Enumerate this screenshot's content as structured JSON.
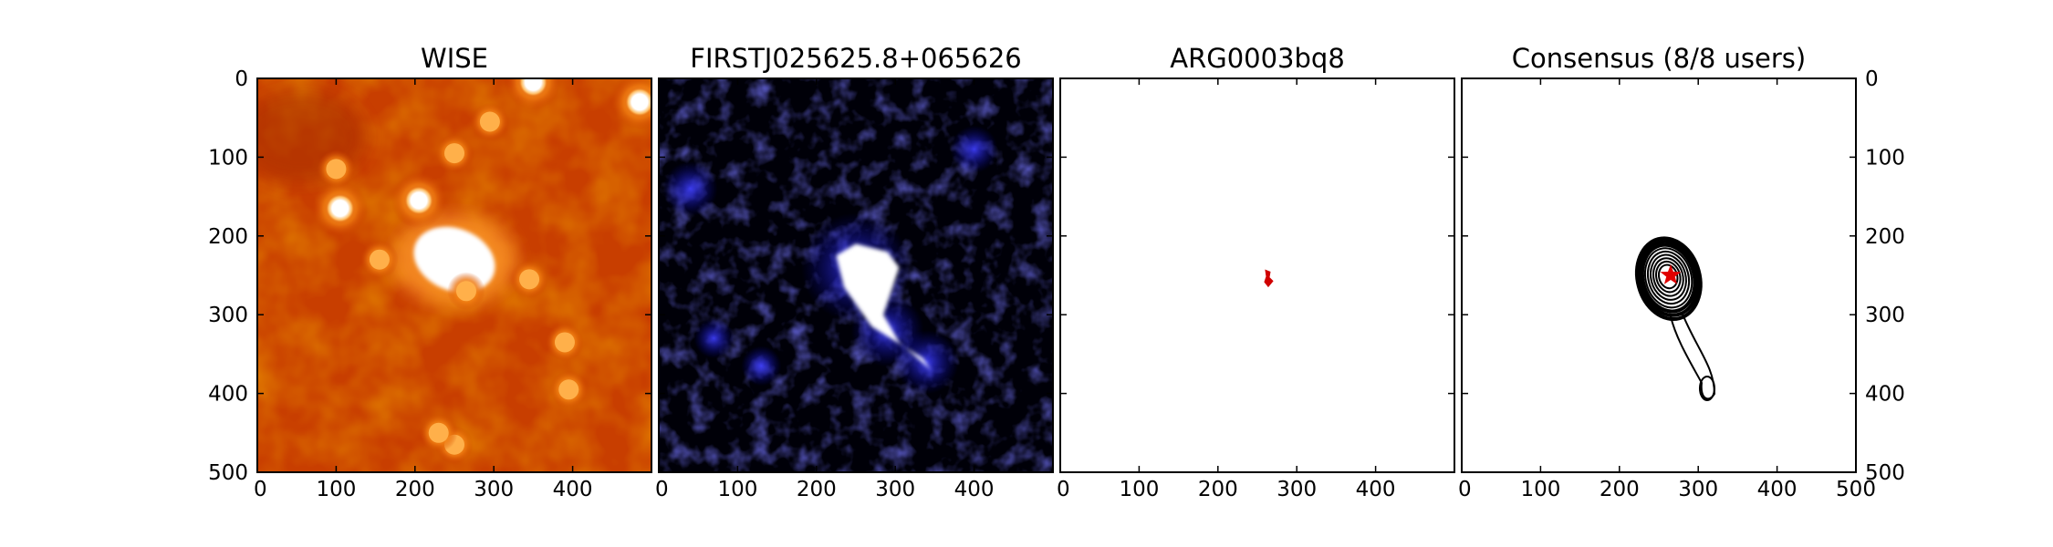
{
  "chart_data": {
    "type": "image-grid",
    "shared_axes": {
      "xlim": [
        0,
        500
      ],
      "ylim": [
        500,
        0
      ],
      "xticks": [
        0,
        100,
        200,
        300,
        400
      ],
      "yticks": [
        0,
        100,
        200,
        300,
        400,
        500
      ]
    },
    "panels": [
      {
        "title": "WISE",
        "colormap": "hot",
        "xtick_labels": [
          "0",
          "100",
          "200",
          "300",
          "400"
        ],
        "ytick_labels": [
          "0",
          "100",
          "200",
          "300",
          "400",
          "500"
        ],
        "ytick_side": "left",
        "sources": [
          {
            "x": 250,
            "y": 230,
            "label": "bright central source"
          },
          {
            "x": 350,
            "y": 5
          },
          {
            "x": 485,
            "y": 30
          },
          {
            "x": 105,
            "y": 165
          },
          {
            "x": 205,
            "y": 155
          },
          {
            "x": 100,
            "y": 115
          },
          {
            "x": 250,
            "y": 95
          },
          {
            "x": 295,
            "y": 55
          },
          {
            "x": 265,
            "y": 270
          },
          {
            "x": 345,
            "y": 255
          },
          {
            "x": 390,
            "y": 335
          },
          {
            "x": 395,
            "y": 395
          },
          {
            "x": 250,
            "y": 465
          },
          {
            "x": 230,
            "y": 450
          },
          {
            "x": 155,
            "y": 230
          }
        ]
      },
      {
        "title": "FIRSTJ025625.8+065626",
        "colormap": "blue",
        "xtick_labels": [
          "0",
          "100",
          "200",
          "300",
          "400"
        ],
        "emission_path": [
          [
            250,
            210
          ],
          [
            290,
            220
          ],
          [
            305,
            240
          ],
          [
            285,
            300
          ],
          [
            305,
            335
          ],
          [
            345,
            370
          ],
          [
            335,
            355
          ],
          [
            270,
            315
          ],
          [
            235,
            265
          ],
          [
            225,
            225
          ]
        ]
      },
      {
        "title": "ARG0003bq8",
        "colormap": "none",
        "xtick_labels": [
          "0",
          "100",
          "200",
          "300",
          "400"
        ],
        "marker": {
          "x": 265,
          "y": 255,
          "color": "#d00000"
        }
      },
      {
        "title": "Consensus (8/8 users)",
        "colormap": "none",
        "xtick_labels": [
          "0",
          "100",
          "200",
          "300",
          "400",
          "500"
        ],
        "ytick_labels": [
          "0",
          "100",
          "200",
          "300",
          "400",
          "500"
        ],
        "ytick_side": "right",
        "consensus_peak": {
          "x": 265,
          "y": 250,
          "color": "#e00000"
        },
        "contour_color": "#000000"
      }
    ]
  }
}
